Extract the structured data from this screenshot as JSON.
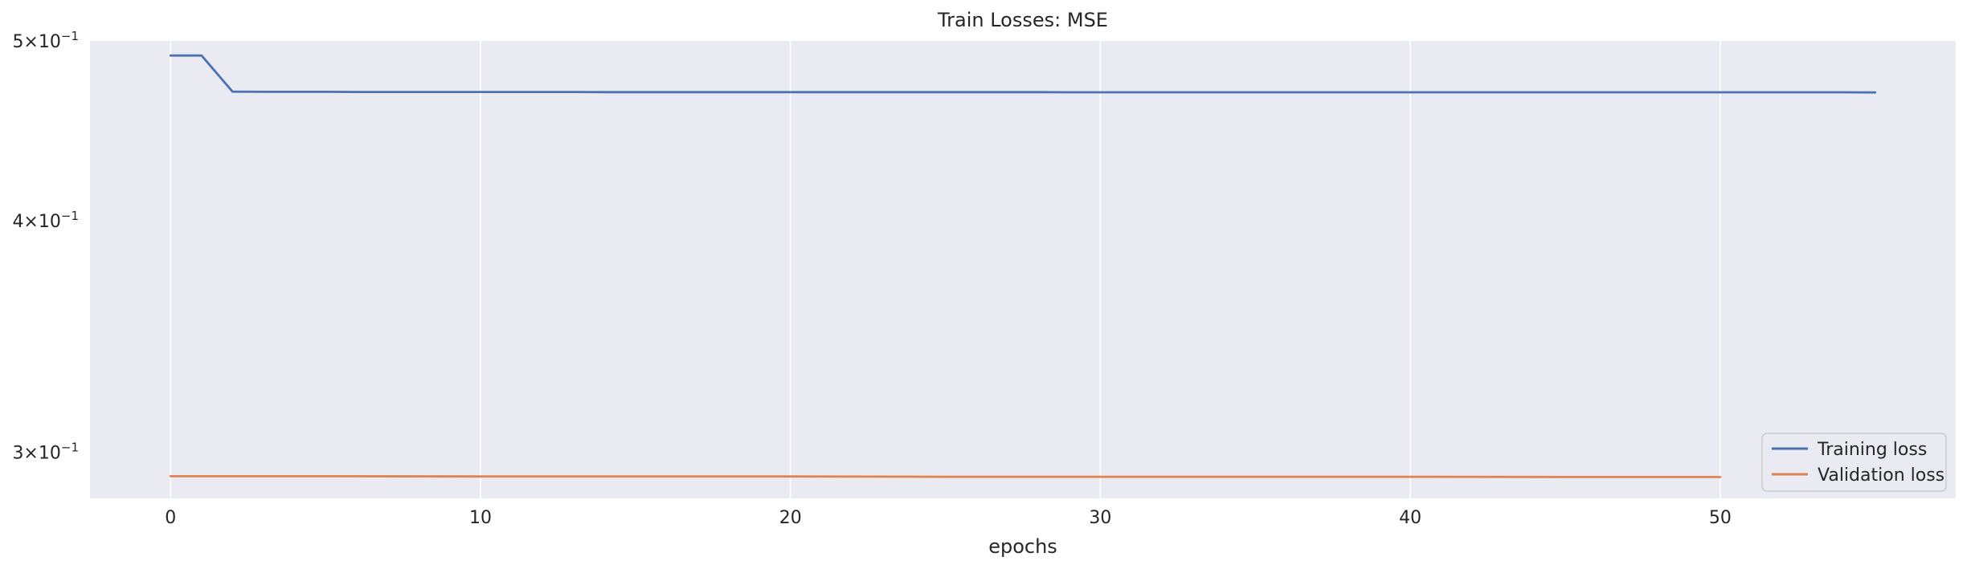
{
  "chart_data": {
    "type": "line",
    "title": "Train Losses:  MSE",
    "xlabel": "epochs",
    "ylabel": "",
    "yscale": "log",
    "xlim": [
      -2.6,
      57.6
    ],
    "ylim": [
      0.2833,
      0.5
    ],
    "x_ticks": [
      0,
      10,
      20,
      30,
      40,
      50
    ],
    "y_ticks": [
      {
        "value": 0.5,
        "mantissa": "5",
        "base": "10",
        "exponent": "−1"
      },
      {
        "value": 0.4,
        "mantissa": "4",
        "base": "10",
        "exponent": "−1"
      },
      {
        "value": 0.3,
        "mantissa": "3",
        "base": "10",
        "exponent": "−1"
      }
    ],
    "grid": true,
    "legend_position": "lower-right",
    "series": [
      {
        "name": "Training loss",
        "color": "#4c72b0",
        "x": [
          0,
          1,
          2,
          3,
          4,
          5,
          6,
          7,
          8,
          9,
          10,
          11,
          12,
          13,
          14,
          15,
          16,
          17,
          18,
          19,
          20,
          21,
          22,
          23,
          24,
          25,
          26,
          27,
          28,
          29,
          30,
          31,
          32,
          33,
          34,
          35,
          36,
          37,
          38,
          39,
          40,
          41,
          42,
          43,
          44,
          45,
          46,
          47,
          48,
          49,
          50,
          51,
          52,
          53,
          54,
          55
        ],
        "values": [
          0.491,
          0.491,
          0.4695,
          0.4694,
          0.4694,
          0.4694,
          0.4693,
          0.4693,
          0.4693,
          0.4693,
          0.4693,
          0.4693,
          0.4693,
          0.4693,
          0.4692,
          0.4692,
          0.4692,
          0.4692,
          0.4692,
          0.4692,
          0.4692,
          0.4692,
          0.4692,
          0.4692,
          0.4692,
          0.4692,
          0.4692,
          0.4692,
          0.4692,
          0.4691,
          0.4691,
          0.4691,
          0.4691,
          0.4691,
          0.4691,
          0.4691,
          0.4691,
          0.4691,
          0.4691,
          0.4691,
          0.4691,
          0.4691,
          0.4691,
          0.4691,
          0.4691,
          0.4691,
          0.4691,
          0.4691,
          0.4691,
          0.4691,
          0.4691,
          0.4691,
          0.4691,
          0.4691,
          0.4691,
          0.469
        ]
      },
      {
        "name": "Validation loss",
        "color": "#dd8452",
        "x": [
          0,
          5,
          10,
          15,
          20,
          25,
          30,
          35,
          40,
          45,
          50
        ],
        "values": [
          0.2912,
          0.2912,
          0.2911,
          0.2911,
          0.2911,
          0.291,
          0.291,
          0.291,
          0.291,
          0.2909,
          0.2909
        ]
      }
    ]
  }
}
